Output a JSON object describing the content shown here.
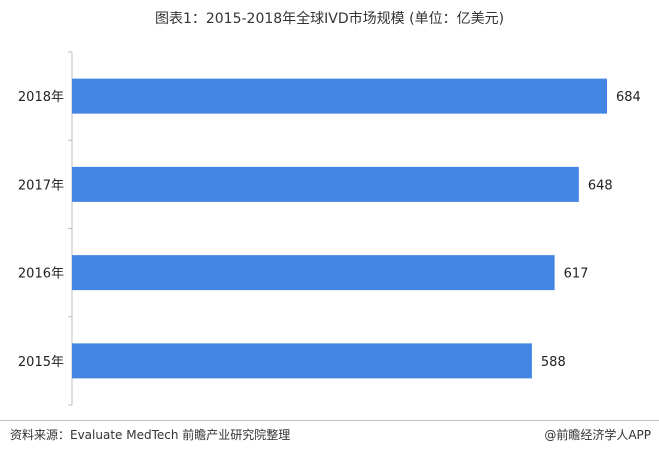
{
  "chart_data": {
    "type": "bar",
    "orientation": "horizontal",
    "title": "图表1：2015-2018年全球IVD市场规模 (单位：亿美元)",
    "categories": [
      "2018年",
      "2017年",
      "2016年",
      "2015年"
    ],
    "values": [
      684,
      648,
      617,
      588
    ],
    "bar_color": "#4285e3",
    "xlim": [
      0,
      700
    ],
    "grid": false,
    "legend": "none"
  },
  "footer": {
    "source": "资料来源：Evaluate MedTech 前瞻产业研究院整理",
    "credit": "@前瞻经济学人APP"
  }
}
